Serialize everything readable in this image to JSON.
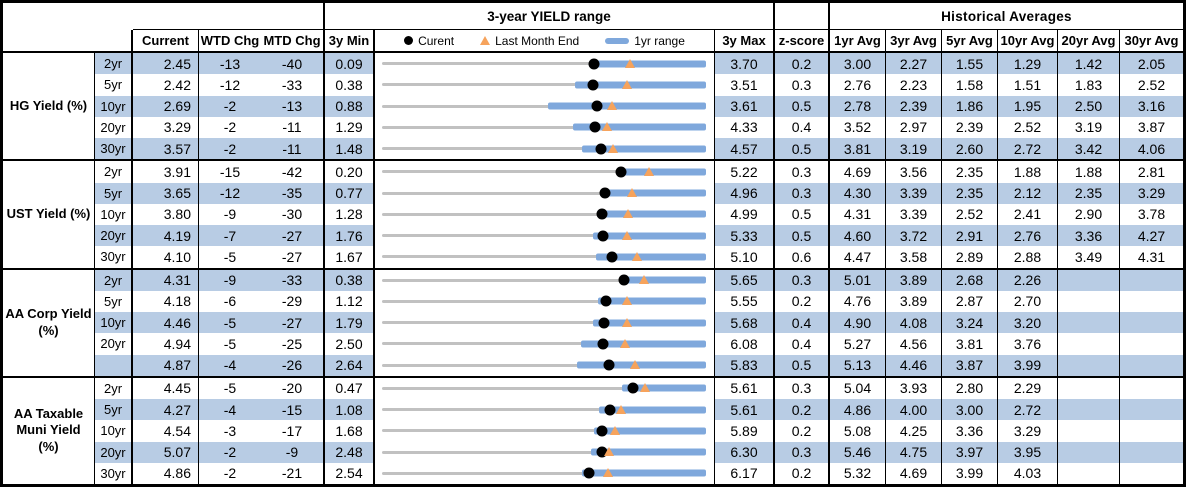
{
  "header": {
    "range_title": "3-year YIELD range",
    "hist_title": "Historical Averages",
    "col_current": "Current",
    "col_wtd": "WTD Chg",
    "col_mtd": "MTD Chg",
    "col_min": "3y Min",
    "col_max": "3y Max",
    "col_z": "z-score",
    "avg_cols": [
      "1yr Avg",
      "3yr Avg",
      "5yr Avg",
      "10yr Avg",
      "20yr Avg",
      "30yr Avg"
    ]
  },
  "colors": {
    "stripe_blue": "#B8CCE4",
    "bar_blue": "#7FA8DC",
    "track_gray": "#C1C1C1",
    "triangle_orange": "#F6A35C",
    "dot_black": "#000000"
  },
  "chart_data": {
    "type": "table",
    "row_chart_type": "range",
    "legend": {
      "current": "Curent",
      "last_month": "Last Month End",
      "range": "1yr range"
    },
    "groups": [
      {
        "label": "HG Yield (%)",
        "rows": [
          {
            "tenor": "2yr",
            "current": "2.45",
            "wtd": "-13",
            "mtd": "-40",
            "min": "0.09",
            "max": "3.70",
            "z": "0.2",
            "avgs": [
              "3.00",
              "2.27",
              "1.55",
              "1.29",
              "1.42",
              "2.05"
            ],
            "range1y": [
              2.4,
              3.7
            ]
          },
          {
            "tenor": "5yr",
            "current": "2.42",
            "wtd": "-12",
            "mtd": "-33",
            "min": "0.38",
            "max": "3.51",
            "z": "0.3",
            "avgs": [
              "2.76",
              "2.23",
              "1.58",
              "1.51",
              "1.83",
              "2.52"
            ],
            "range1y": [
              2.24,
              3.51
            ]
          },
          {
            "tenor": "10yr",
            "current": "2.69",
            "wtd": "-2",
            "mtd": "-13",
            "min": "0.88",
            "max": "3.61",
            "z": "0.5",
            "avgs": [
              "2.78",
              "2.39",
              "1.86",
              "1.95",
              "2.50",
              "3.16"
            ],
            "range1y": [
              2.28,
              3.61
            ]
          },
          {
            "tenor": "20yr",
            "current": "3.29",
            "wtd": "-2",
            "mtd": "-11",
            "min": "1.29",
            "max": "4.33",
            "z": "0.4",
            "avgs": [
              "3.52",
              "2.97",
              "2.39",
              "2.52",
              "3.19",
              "3.87"
            ],
            "range1y": [
              3.08,
              4.33
            ]
          },
          {
            "tenor": "30yr",
            "current": "3.57",
            "wtd": "-2",
            "mtd": "-11",
            "min": "1.48",
            "max": "4.57",
            "z": "0.5",
            "avgs": [
              "3.81",
              "3.19",
              "2.60",
              "2.72",
              "3.42",
              "4.06"
            ],
            "range1y": [
              3.39,
              4.57
            ]
          }
        ]
      },
      {
        "label": "UST Yield (%)",
        "rows": [
          {
            "tenor": "2yr",
            "current": "3.91",
            "wtd": "-15",
            "mtd": "-42",
            "min": "0.20",
            "max": "5.22",
            "z": "0.3",
            "avgs": [
              "4.69",
              "3.56",
              "2.35",
              "1.88",
              "1.88",
              "2.81"
            ],
            "range1y": [
              3.87,
              5.22
            ]
          },
          {
            "tenor": "5yr",
            "current": "3.65",
            "wtd": "-12",
            "mtd": "-35",
            "min": "0.77",
            "max": "4.96",
            "z": "0.3",
            "avgs": [
              "4.30",
              "3.39",
              "2.35",
              "2.12",
              "2.35",
              "3.29"
            ],
            "range1y": [
              3.59,
              4.96
            ]
          },
          {
            "tenor": "10yr",
            "current": "3.80",
            "wtd": "-9",
            "mtd": "-30",
            "min": "1.28",
            "max": "4.99",
            "z": "0.5",
            "avgs": [
              "4.31",
              "3.39",
              "2.52",
              "2.41",
              "2.90",
              "3.78"
            ],
            "range1y": [
              3.74,
              4.99
            ]
          },
          {
            "tenor": "20yr",
            "current": "4.19",
            "wtd": "-7",
            "mtd": "-27",
            "min": "1.76",
            "max": "5.33",
            "z": "0.5",
            "avgs": [
              "4.60",
              "3.72",
              "2.91",
              "2.76",
              "3.36",
              "4.27"
            ],
            "range1y": [
              4.09,
              5.33
            ]
          },
          {
            "tenor": "30yr",
            "current": "4.10",
            "wtd": "-5",
            "mtd": "-27",
            "min": "1.67",
            "max": "5.10",
            "z": "0.6",
            "avgs": [
              "4.47",
              "3.58",
              "2.89",
              "2.88",
              "3.49",
              "4.31"
            ],
            "range1y": [
              3.94,
              5.1
            ]
          }
        ]
      },
      {
        "label": "AA Corp Yield (%)",
        "rows": [
          {
            "tenor": "2yr",
            "current": "4.31",
            "wtd": "-9",
            "mtd": "-33",
            "min": "0.38",
            "max": "5.65",
            "z": "0.3",
            "avgs": [
              "5.01",
              "3.89",
              "2.68",
              "2.26",
              "",
              ""
            ],
            "range1y": [
              4.25,
              5.65
            ]
          },
          {
            "tenor": "5yr",
            "current": "4.18",
            "wtd": "-6",
            "mtd": "-29",
            "min": "1.12",
            "max": "5.55",
            "z": "0.2",
            "avgs": [
              "4.76",
              "3.89",
              "2.87",
              "2.70",
              "",
              ""
            ],
            "range1y": [
              4.08,
              5.55
            ]
          },
          {
            "tenor": "10yr",
            "current": "4.46",
            "wtd": "-5",
            "mtd": "-27",
            "min": "1.79",
            "max": "5.68",
            "z": "0.4",
            "avgs": [
              "4.90",
              "4.08",
              "3.24",
              "3.20",
              "",
              ""
            ],
            "range1y": [
              4.32,
              5.68
            ]
          },
          {
            "tenor": "20yr",
            "current": "4.94",
            "wtd": "-5",
            "mtd": "-25",
            "min": "2.50",
            "max": "6.08",
            "z": "0.4",
            "avgs": [
              "5.27",
              "4.56",
              "3.81",
              "3.76",
              "",
              ""
            ],
            "range1y": [
              4.7,
              6.08
            ]
          },
          {
            "tenor": "",
            "current": "4.87",
            "wtd": "-4",
            "mtd": "-26",
            "min": "2.64",
            "max": "5.83",
            "z": "0.5",
            "avgs": [
              "5.13",
              "4.46",
              "3.87",
              "3.99",
              "",
              ""
            ],
            "range1y": [
              4.56,
              5.83
            ]
          }
        ]
      },
      {
        "label": "AA Taxable Muni Yield (%)",
        "rows": [
          {
            "tenor": "2yr",
            "current": "4.45",
            "wtd": "-5",
            "mtd": "-20",
            "min": "0.47",
            "max": "5.61",
            "z": "0.3",
            "avgs": [
              "5.04",
              "3.93",
              "2.80",
              "2.29",
              "",
              ""
            ],
            "range1y": [
              4.27,
              5.61
            ]
          },
          {
            "tenor": "5yr",
            "current": "4.27",
            "wtd": "-4",
            "mtd": "-15",
            "min": "1.08",
            "max": "5.61",
            "z": "0.2",
            "avgs": [
              "4.86",
              "4.00",
              "3.00",
              "2.72",
              "",
              ""
            ],
            "range1y": [
              4.11,
              5.61
            ]
          },
          {
            "tenor": "10yr",
            "current": "4.54",
            "wtd": "-3",
            "mtd": "-17",
            "min": "1.68",
            "max": "5.89",
            "z": "0.2",
            "avgs": [
              "5.08",
              "4.25",
              "3.36",
              "3.29",
              "",
              ""
            ],
            "range1y": [
              4.43,
              5.89
            ]
          },
          {
            "tenor": "20yr",
            "current": "5.07",
            "wtd": "-2",
            "mtd": "-9",
            "min": "2.48",
            "max": "6.30",
            "z": "0.3",
            "avgs": [
              "5.46",
              "4.75",
              "3.97",
              "3.95",
              "",
              ""
            ],
            "range1y": [
              4.94,
              6.3
            ]
          },
          {
            "tenor": "30yr",
            "current": "4.86",
            "wtd": "-2",
            "mtd": "-21",
            "min": "2.54",
            "max": "6.17",
            "z": "0.2",
            "avgs": [
              "5.32",
              "4.69",
              "3.99",
              "4.03",
              "",
              ""
            ],
            "range1y": [
              4.78,
              6.17
            ]
          }
        ]
      }
    ]
  }
}
